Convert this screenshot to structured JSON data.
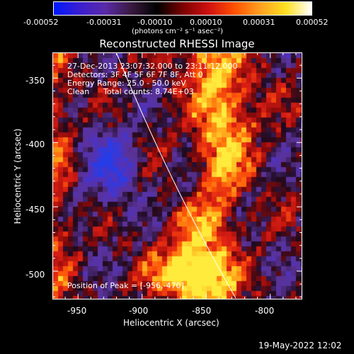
{
  "colorbar": {
    "tick_labels": [
      "-0.00052",
      "-0.00031",
      "-0.00010",
      "0.00010",
      "0.00031",
      "0.00052"
    ],
    "unit_label": "(photons cm⁻² s⁻¹ asec⁻²)",
    "colors": [
      "#0018ff",
      "#3a1fd0",
      "#5a2aa8",
      "#3a1a40",
      "#000000",
      "#7a0000",
      "#d01010",
      "#ff5000",
      "#ffa020",
      "#ffe020",
      "#ffffff"
    ]
  },
  "title": "Reconstructed RHESSI Image",
  "info": {
    "line1": "27-Dec-2013 23:07:32.000 to 23:11:12.000",
    "line2": "Detectors: 3F 4F 5F 6F 7F 8F, Att 0",
    "line3": "Energy Range: 25.0 - 50.0 keV",
    "line4_a": "Clean",
    "line4_b": "Total counts: 8.74E+03"
  },
  "peak_label": "Position of Peak = [-956,-470]",
  "x_axis": {
    "label": "Heliocentric X (arcsec)",
    "range": [
      -970,
      -775
    ],
    "ticks": [
      -950,
      -900,
      -850,
      -800
    ],
    "tick_labels": [
      "-950",
      "-900",
      "-850",
      "-800"
    ]
  },
  "y_axis": {
    "label": "Heliocentric Y (arcsec)",
    "range": [
      -522,
      -330
    ],
    "ticks": [
      -350,
      -400,
      -450,
      -500
    ],
    "tick_labels": [
      "-350",
      "-400",
      "-450",
      "-500"
    ]
  },
  "timestamp": "19-May-2022 12:02"
}
